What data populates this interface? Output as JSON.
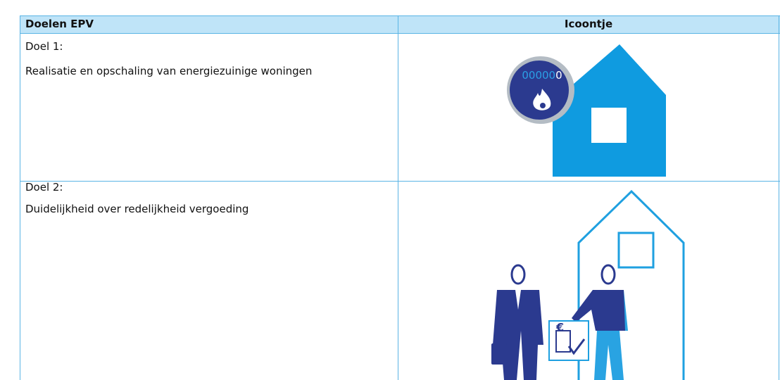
{
  "table": {
    "header": [
      "Doelen EPV",
      "Icoontje"
    ],
    "rows": [
      {
        "goal": "Doel 1:",
        "description": "Realisatie en opschaling van energiezuinige woningen",
        "icon_text": [
          "00000",
          "0"
        ]
      },
      {
        "goal": "Doel 2:",
        "description": "Duidelijkheid over redelijkheid vergoeding",
        "icon_text": [
          "€"
        ]
      }
    ]
  }
}
